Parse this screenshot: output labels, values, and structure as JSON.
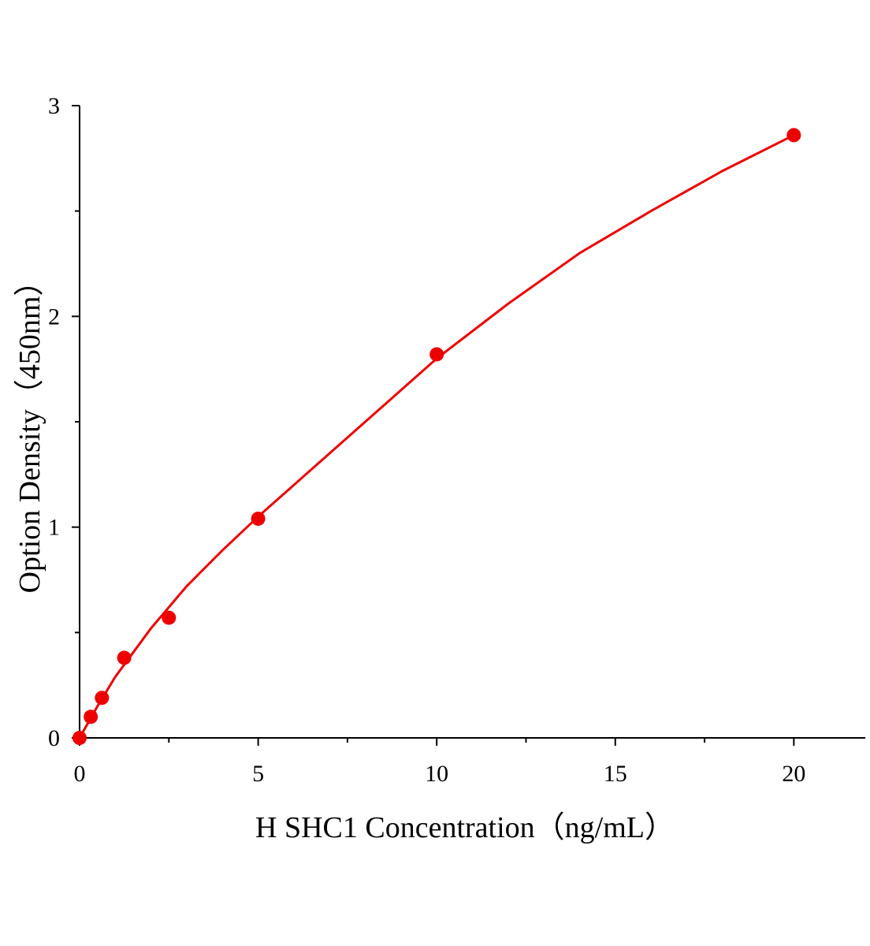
{
  "chart_data": {
    "type": "scatter",
    "x_label": "H SHC1 Concentration（ng/mL）",
    "y_label": "Option Density（450nm）",
    "series": [
      {
        "color": "#ee0000",
        "x": [
          0,
          0.3125,
          0.625,
          1.25,
          2.5,
          5,
          10,
          20
        ],
        "values": [
          0,
          0.1,
          0.19,
          0.38,
          0.57,
          1.04,
          1.82,
          2.86
        ]
      }
    ],
    "curve": {
      "color": "#ee0000",
      "x": [
        0,
        0.5,
        1,
        2,
        3,
        4,
        5,
        6,
        8,
        10,
        12,
        14,
        16,
        18,
        20
      ],
      "values": [
        0,
        0.15,
        0.29,
        0.52,
        0.72,
        0.89,
        1.05,
        1.2,
        1.5,
        1.8,
        2.06,
        2.3,
        2.5,
        2.69,
        2.86
      ]
    },
    "xlim": [
      0,
      22
    ],
    "xticks": [
      0,
      5,
      10,
      15,
      20
    ],
    "xminorticks": [
      2.5,
      7.5,
      12.5,
      17.5
    ],
    "ylim": [
      0,
      3
    ],
    "yticks": [
      0,
      1,
      2,
      3
    ],
    "yminorticks": [
      0.5,
      1.5,
      2.5
    ]
  }
}
